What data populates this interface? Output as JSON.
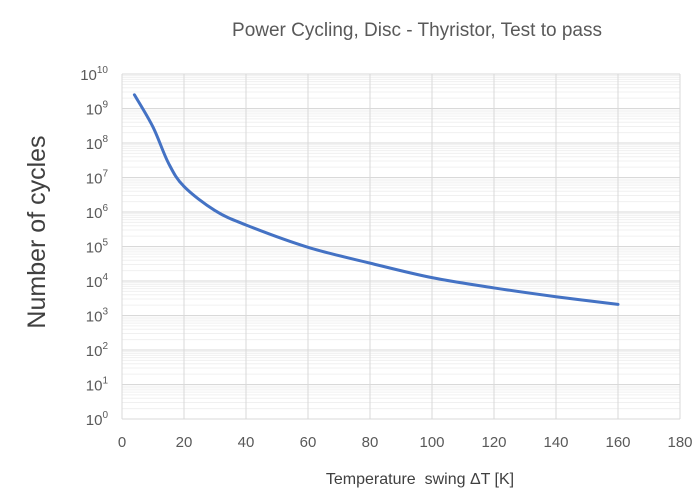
{
  "chart_data": {
    "type": "line",
    "title": "Power Cycling, Disc - Thyristor, Test to pass",
    "xlabel": "Temperature  swing ΔT [K]",
    "ylabel": "Number of cycles",
    "xlim": [
      0,
      180
    ],
    "ylim": [
      1,
      10000000000
    ],
    "yscale": "log",
    "grid": true,
    "legend": "none",
    "x_ticks": [
      "0",
      "20",
      "40",
      "60",
      "80",
      "100",
      "120",
      "140",
      "160",
      "180"
    ],
    "y_ticks": [
      {
        "base": "10",
        "exp": "0"
      },
      {
        "base": "10",
        "exp": "1"
      },
      {
        "base": "10",
        "exp": "2"
      },
      {
        "base": "10",
        "exp": "3"
      },
      {
        "base": "10",
        "exp": "4"
      },
      {
        "base": "10",
        "exp": "5"
      },
      {
        "base": "10",
        "exp": "6"
      },
      {
        "base": "10",
        "exp": "7"
      },
      {
        "base": "10",
        "exp": "8"
      },
      {
        "base": "10",
        "exp": "9"
      },
      {
        "base": "10",
        "exp": "10"
      }
    ],
    "series": [
      {
        "color": "#4472C4",
        "x": [
          4,
          10,
          15,
          20,
          30,
          40,
          60,
          80,
          100,
          120,
          140,
          160
        ],
        "y": [
          2500000000,
          290000000,
          26000000,
          5500000,
          1100000,
          420000,
          95000,
          33000,
          12500,
          6300,
          3500,
          2100
        ]
      }
    ]
  }
}
